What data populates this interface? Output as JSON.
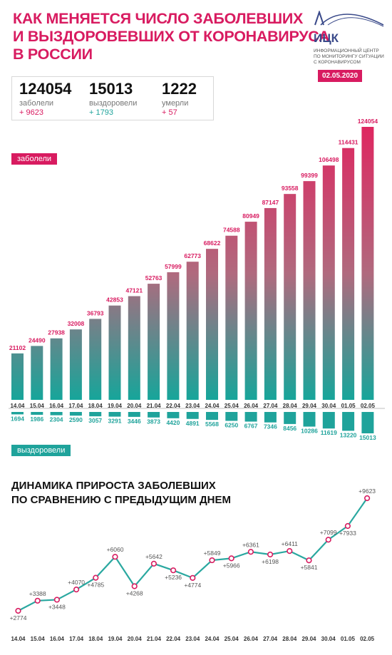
{
  "header": {
    "title_lines": [
      "КАК МЕНЯЕТСЯ ЧИСЛО ЗАБОЛЕВШИХ",
      "И ВЫЗДОРОВЕВШИХ ОТ КОРОНАВИРУСА",
      "В РОССИИ"
    ],
    "logo_abbr": "ИЦК",
    "logo_lines": [
      "ИНФОРМАЦИОННЫЙ ЦЕНТР",
      "ПО МОНИТОРИНГУ СИТУАЦИИ",
      "С КОРОНАВИРУСОМ"
    ],
    "date": "02.05.2020"
  },
  "stats": {
    "infected": {
      "value": "124054",
      "label": "заболели",
      "delta": "+ 9623"
    },
    "recovered": {
      "value": "15013",
      "label": "выздоровели",
      "delta": "+ 1793"
    },
    "died": {
      "value": "1222",
      "label": "умерли",
      "delta": "+ 57"
    }
  },
  "labels": {
    "infected_tag": "заболели",
    "recovered_tag": "выздоровели"
  },
  "subtitle_lines": [
    "ДИНАМИКА ПРИРОСТА ЗАБОЛЕВШИХ",
    "ПО СРАВНЕНИЮ С ПРЕДЫДУЩИМ ДНЕМ"
  ],
  "colors": {
    "accent": "#d81b60",
    "teal": "#1fa39b",
    "line": "#2aa8a0"
  },
  "chart_data": [
    {
      "type": "bar",
      "categories": [
        "14.04",
        "15.04",
        "16.04",
        "17.04",
        "18.04",
        "19.04",
        "20.04",
        "21.04",
        "22.04",
        "23.04",
        "24.04",
        "25.04",
        "26.04",
        "27.04",
        "28.04",
        "29.04",
        "30.04",
        "01.05",
        "02.05"
      ],
      "series": [
        {
          "name": "заболели",
          "values": [
            21102,
            24490,
            27938,
            32008,
            36793,
            42853,
            47121,
            52763,
            57999,
            62773,
            68622,
            74588,
            80949,
            87147,
            93558,
            99399,
            106498,
            114431,
            124054
          ]
        },
        {
          "name": "выздоровели",
          "values": [
            1694,
            1986,
            2304,
            2590,
            3057,
            3291,
            3446,
            3873,
            4420,
            4891,
            5568,
            6250,
            6767,
            7346,
            8456,
            10286,
            11619,
            13220,
            15013
          ]
        }
      ]
    },
    {
      "type": "line",
      "title": "ДИНАМИКА ПРИРОСТА ЗАБОЛЕВШИХ ПО СРАВНЕНИЮ С ПРЕДЫДУЩИМ ДНЕМ",
      "categories": [
        "14.04",
        "15.04",
        "16.04",
        "17.04",
        "18.04",
        "19.04",
        "20.04",
        "21.04",
        "22.04",
        "23.04",
        "24.04",
        "25.04",
        "26.04",
        "27.04",
        "28.04",
        "29.04",
        "30.04",
        "01.05",
        "02.05"
      ],
      "values": [
        2774,
        3388,
        3448,
        4070,
        4785,
        6060,
        4268,
        5642,
        5236,
        4774,
        5849,
        5966,
        6361,
        6198,
        6411,
        5841,
        7099,
        7933,
        9623
      ],
      "value_labels": [
        "+2774",
        "+3388",
        "+3448",
        "+4070",
        "+4785",
        "+6060",
        "+4268",
        "+5642",
        "+5236",
        "+4774",
        "+5849",
        "+5966",
        "+6361",
        "+6198",
        "+6411",
        "+5841",
        "+7099",
        "+7933",
        "+9623"
      ]
    }
  ]
}
